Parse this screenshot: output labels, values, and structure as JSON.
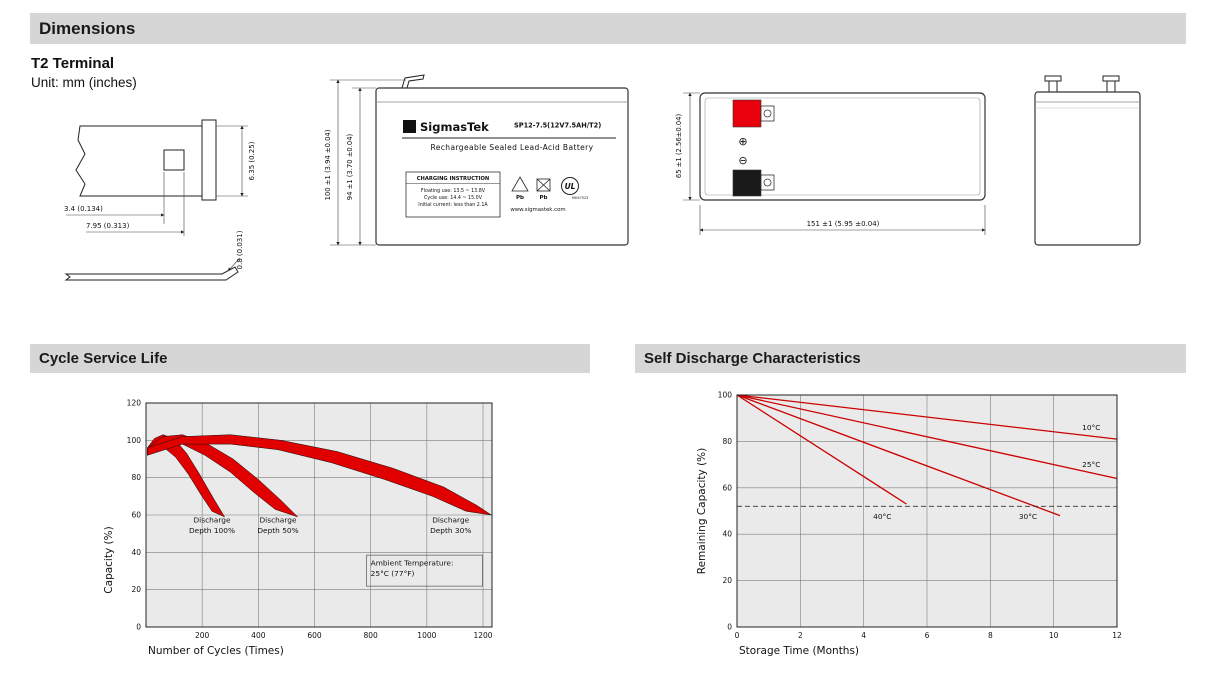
{
  "page": {
    "header": "Dimensions",
    "terminal_type": "T2 Terminal",
    "unit_note": "Unit: mm (inches)"
  },
  "terminal_drawing": {
    "dim_hole_offset": "3.4 (0.134)",
    "dim_tab_width": "7.95 (0.313)",
    "dim_tab_height": "6.35 (0.25)",
    "dim_thickness": "0.8 (0.031)"
  },
  "front_view": {
    "logo_sigma": "Σ",
    "brand": "SigmasTek",
    "model": "SP12-7.5(12V7.5AH/T2)",
    "battery_type": "Rechargeable Sealed Lead-Acid Battery",
    "charging_title": "CHARGING INSTRUCTION",
    "charging_lines": [
      "Floating use: 13.5 ~ 13.8V",
      "Cycle use: 14.4 ~ 15.0V",
      "Initial current: less than 2.1A"
    ],
    "pb_left": "Pb",
    "pb_right": "Pb",
    "ul_text": "UL",
    "ul_code": "MH47523",
    "website": "www.sigmastek.com",
    "dim_total_height": "100 ±1 (3.94 ±0.04)",
    "dim_body_height": "94 ±1 (3.70 ±0.04)"
  },
  "side_view": {
    "positive_symbol": "⊕",
    "negative_symbol": "⊖",
    "dim_height": "65 ±1 (2.56±0.04)",
    "dim_length": "151 ±1 (5.95 ±0.04)"
  },
  "sections": {
    "cycle_title": "Cycle Service Life",
    "discharge_title": "Self Discharge Characteristics"
  },
  "chart_data": [
    {
      "type": "area",
      "title": "Cycle Service Life",
      "xlabel": "Number of Cycles (Times)",
      "ylabel": "Capacity (%)",
      "xlim": [
        0,
        1232
      ],
      "ylim": [
        0,
        120
      ],
      "xticks": [
        200,
        400,
        600,
        800,
        1000,
        1200
      ],
      "yticks": [
        0,
        20,
        40,
        60,
        80,
        100,
        120
      ],
      "grid": true,
      "band_color": "#e00000",
      "bands": [
        {
          "name": "Discharge Depth 100%",
          "upper": [
            [
              5,
              96
            ],
            [
              30,
              101
            ],
            [
              60,
              103
            ],
            [
              100,
              101
            ],
            [
              145,
              93
            ],
            [
              190,
              82
            ],
            [
              240,
              69
            ],
            [
              280,
              59
            ]
          ],
          "lower": [
            [
              5,
              92
            ],
            [
              30,
              96
            ],
            [
              65,
              96
            ],
            [
              105,
              91
            ],
            [
              150,
              82
            ],
            [
              195,
              71
            ],
            [
              235,
              62
            ],
            [
              280,
              59
            ]
          ]
        },
        {
          "name": "Discharge Depth 50%",
          "upper": [
            [
              5,
              96
            ],
            [
              60,
              102
            ],
            [
              130,
              103
            ],
            [
              220,
              98
            ],
            [
              310,
              90
            ],
            [
              400,
              79
            ],
            [
              480,
              68
            ],
            [
              540,
              59
            ]
          ],
          "lower": [
            [
              5,
              92
            ],
            [
              60,
              97
            ],
            [
              130,
              98
            ],
            [
              210,
              92
            ],
            [
              300,
              83
            ],
            [
              385,
              72
            ],
            [
              460,
              63
            ],
            [
              540,
              59
            ]
          ]
        },
        {
          "name": "Discharge Depth 30%",
          "upper": [
            [
              5,
              96
            ],
            [
              130,
              102
            ],
            [
              300,
              103
            ],
            [
              480,
              100
            ],
            [
              680,
              94
            ],
            [
              880,
              85
            ],
            [
              1060,
              75
            ],
            [
              1180,
              65
            ],
            [
              1230,
              60
            ]
          ],
          "lower": [
            [
              5,
              92
            ],
            [
              130,
              98
            ],
            [
              300,
              98
            ],
            [
              470,
              95
            ],
            [
              660,
              88
            ],
            [
              850,
              79
            ],
            [
              1020,
              70
            ],
            [
              1140,
              62
            ],
            [
              1230,
              60
            ]
          ]
        }
      ],
      "annotations": [
        {
          "lines": [
            "Discharge",
            "Depth 100%"
          ],
          "x": 235,
          "y": 56,
          "anchor": "middle"
        },
        {
          "lines": [
            "Discharge",
            "Depth 50%"
          ],
          "x": 470,
          "y": 56,
          "anchor": "middle"
        },
        {
          "lines": [
            "Discharge",
            "Depth 30%"
          ],
          "x": 1085,
          "y": 56,
          "anchor": "middle"
        },
        {
          "lines": [
            "Ambient Temperature:",
            "25°C (77°F)"
          ],
          "x": 800,
          "y": 33,
          "anchor": "start",
          "boxed": true,
          "box": {
            "x": 785,
            "y": 38.5,
            "w": 116,
            "h": 31
          }
        }
      ]
    },
    {
      "type": "line",
      "title": "Self Discharge Characteristics",
      "xlabel": "Storage Time (Months)",
      "ylabel": "Remaining Capacity (%)",
      "xlim": [
        0,
        12
      ],
      "ylim": [
        0,
        100
      ],
      "xticks": [
        0,
        2,
        4,
        6,
        8,
        10,
        12
      ],
      "yticks": [
        0,
        20,
        40,
        60,
        80,
        100
      ],
      "grid": true,
      "line_color": "#cc0000",
      "series": [
        {
          "name": "10°C",
          "points": [
            [
              0,
              100
            ],
            [
              12,
              81
            ]
          ]
        },
        {
          "name": "25°C",
          "points": [
            [
              0,
              100
            ],
            [
              12,
              64
            ]
          ]
        },
        {
          "name": "30°C",
          "points": [
            [
              0,
              100
            ],
            [
              10.2,
              48
            ]
          ]
        },
        {
          "name": "40°C",
          "points": [
            [
              0,
              100
            ],
            [
              5.35,
              53
            ]
          ]
        }
      ],
      "dashed_line": {
        "y": 52,
        "x0": 0,
        "x1": 12
      },
      "annotations": [
        {
          "lines": [
            "10°C"
          ],
          "x": 10.9,
          "y": 85,
          "anchor": "start"
        },
        {
          "lines": [
            "25°C"
          ],
          "x": 10.9,
          "y": 69,
          "anchor": "start"
        },
        {
          "lines": [
            "30°C"
          ],
          "x": 8.9,
          "y": 46.5,
          "anchor": "start"
        },
        {
          "lines": [
            "40°C"
          ],
          "x": 4.3,
          "y": 46.5,
          "anchor": "start"
        }
      ]
    }
  ]
}
